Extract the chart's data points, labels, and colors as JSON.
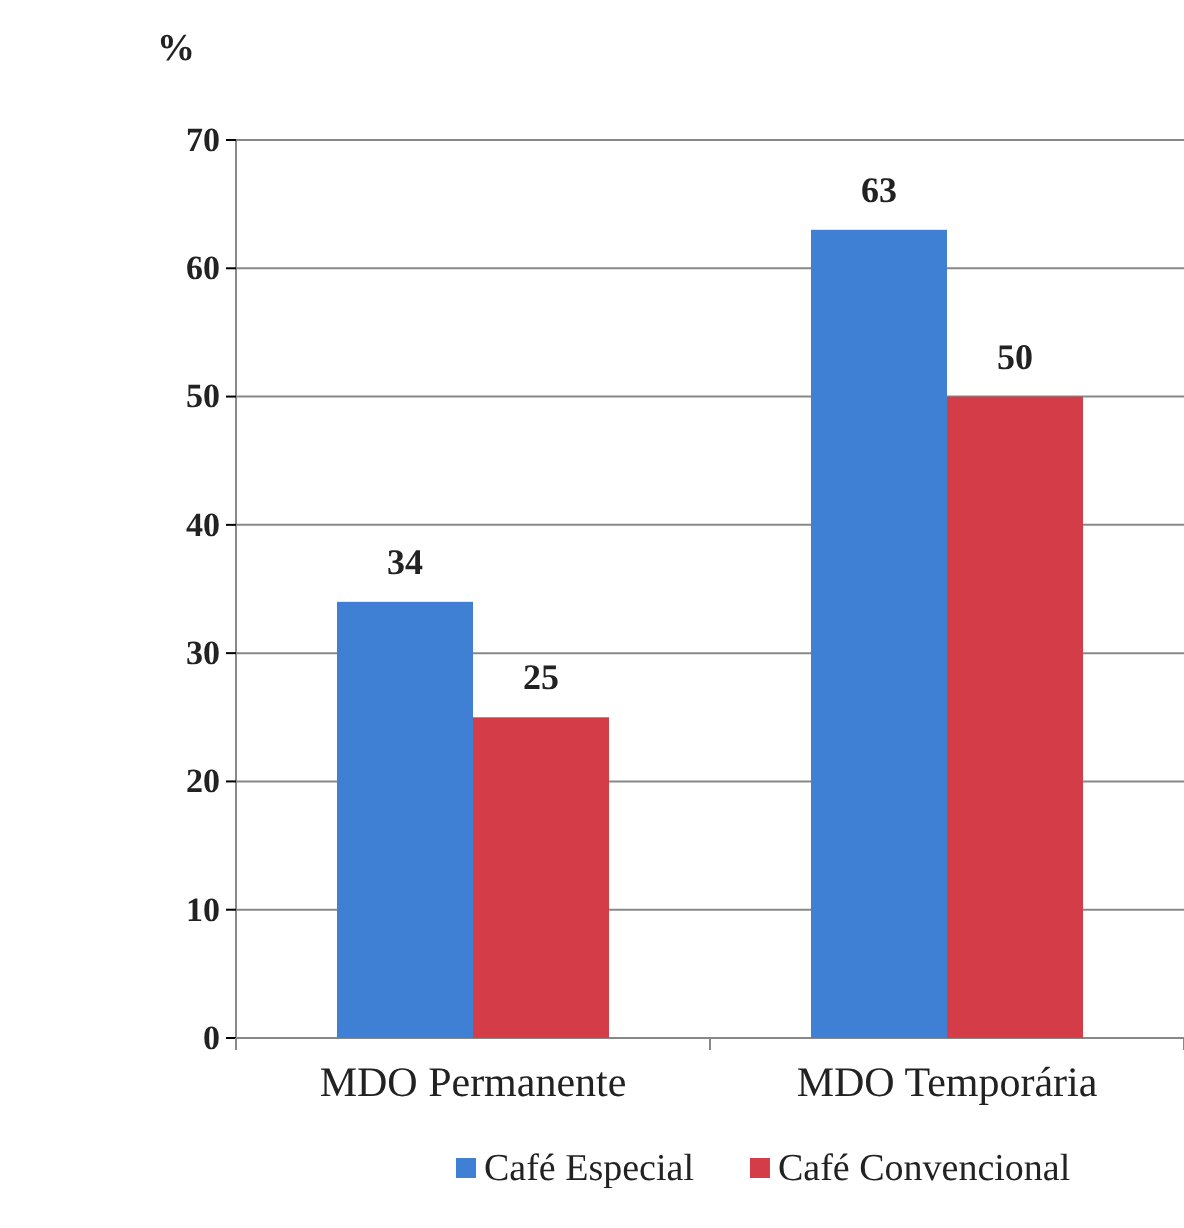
{
  "chart_data": {
    "type": "bar",
    "ylabel": "%",
    "categories": [
      "MDO Permanente",
      "MDO Temporária"
    ],
    "series": [
      {
        "name": "Café Especial",
        "color": "#3f7fd4",
        "values": [
          34,
          63
        ]
      },
      {
        "name": "Café Convencional",
        "color": "#d43c48",
        "values": [
          25,
          50
        ]
      }
    ],
    "ylim": [
      0,
      70
    ],
    "yticks": [
      0,
      10,
      20,
      30,
      40,
      50,
      60,
      70
    ],
    "grid": "y",
    "legend": "bottom",
    "data_labels": true
  }
}
